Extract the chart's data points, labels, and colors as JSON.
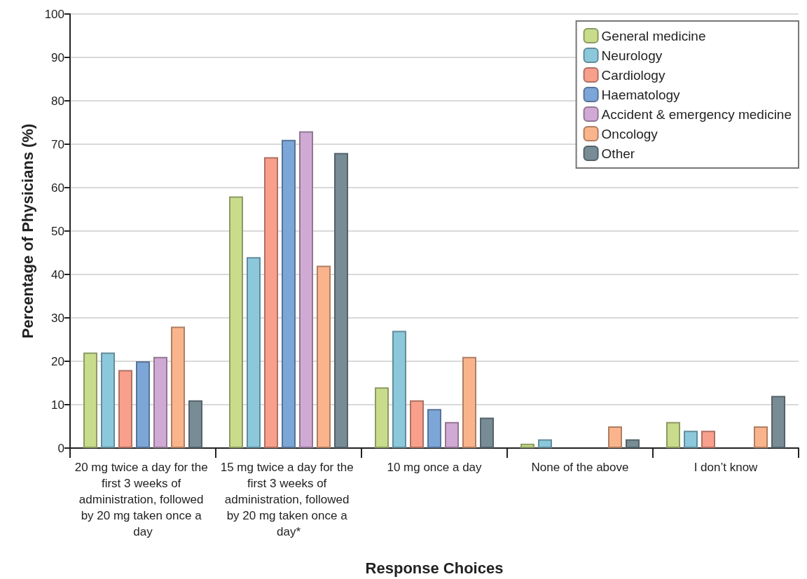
{
  "chart_data": {
    "type": "bar",
    "xlabel": "Response Choices",
    "ylabel": "Percentage of Physicians (%)",
    "categories": [
      "20 mg twice a day for the first 3 weeks of administration, followed by 20 mg taken once a day",
      "15 mg twice a day for the first 3 weeks of administration, followed by 20 mg taken once a day*",
      "10 mg once a day",
      "None of the above",
      "I don’t know"
    ],
    "series": [
      {
        "name": "General medicine",
        "color": "#c8dc8c",
        "values": [
          22,
          58,
          14,
          1,
          6
        ]
      },
      {
        "name": "Neurology",
        "color": "#8cc8dc",
        "values": [
          22,
          44,
          27,
          2,
          4
        ]
      },
      {
        "name": "Cardiology",
        "color": "#f8a08c",
        "values": [
          18,
          67,
          11,
          null,
          4
        ]
      },
      {
        "name": "Haematology",
        "color": "#7ca6d8",
        "values": [
          20,
          71,
          9,
          null,
          null
        ]
      },
      {
        "name": "Accident & emergency medicine",
        "color": "#d0aad4",
        "values": [
          21,
          73,
          6,
          null,
          null
        ]
      },
      {
        "name": "Oncology",
        "color": "#fab48c",
        "values": [
          28,
          42,
          21,
          5,
          5
        ]
      },
      {
        "name": "Other",
        "color": "#788c96",
        "values": [
          11,
          68,
          7,
          2,
          12
        ]
      }
    ],
    "ylim": [
      0,
      100
    ],
    "yticks": [
      0,
      10,
      20,
      30,
      40,
      50,
      60,
      70,
      80,
      90,
      100
    ],
    "grid": "y",
    "legend": "top right"
  }
}
